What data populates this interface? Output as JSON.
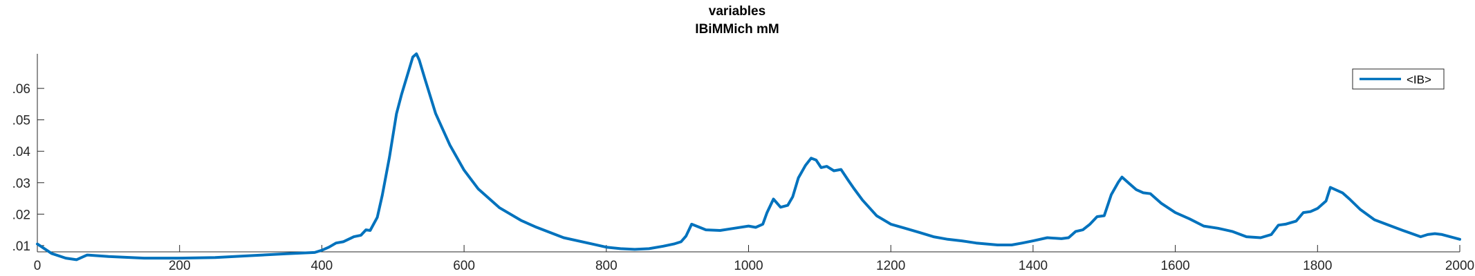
{
  "chart_data": {
    "type": "line",
    "title": "variables",
    "subtitle": "IBiMMich mM",
    "xlabel": "",
    "ylabel": "",
    "xlim": [
      0,
      2000
    ],
    "ylim": [
      0.008,
      0.071
    ],
    "x_ticks": [
      0,
      200,
      400,
      600,
      800,
      1000,
      1200,
      1400,
      1600,
      1800,
      2000
    ],
    "x_tick_labels": [
      "0",
      "200",
      "400",
      "600",
      "800",
      "1000",
      "1200",
      "1400",
      "1600",
      "1800",
      "2000"
    ],
    "y_ticks": [
      0.01,
      0.02,
      0.03,
      0.04,
      0.05,
      0.06
    ],
    "y_tick_labels": [
      ".01",
      ".02",
      ".03",
      ".04",
      ".05",
      ".06"
    ],
    "grid": false,
    "legend": {
      "position": "top-right",
      "entries": [
        "<IB>"
      ]
    },
    "series": [
      {
        "name": "<IB>",
        "color": "#0072BD",
        "x": [
          0,
          20,
          40,
          55,
          65,
          70,
          100,
          150,
          200,
          250,
          300,
          350,
          390,
          400,
          410,
          420,
          430,
          445,
          455,
          462,
          468,
          478,
          485,
          495,
          505,
          512,
          520,
          528,
          533,
          537,
          545,
          560,
          580,
          600,
          620,
          650,
          680,
          700,
          740,
          780,
          800,
          820,
          840,
          860,
          880,
          895,
          905,
          912,
          920,
          940,
          960,
          980,
          1000,
          1010,
          1020,
          1026,
          1035,
          1045,
          1055,
          1062,
          1070,
          1080,
          1088,
          1095,
          1102,
          1110,
          1120,
          1130,
          1140,
          1148,
          1160,
          1180,
          1200,
          1220,
          1240,
          1260,
          1280,
          1300,
          1320,
          1350,
          1370,
          1385,
          1400,
          1420,
          1440,
          1450,
          1460,
          1470,
          1480,
          1490,
          1500,
          1510,
          1520,
          1525,
          1535,
          1545,
          1555,
          1565,
          1580,
          1600,
          1620,
          1640,
          1660,
          1680,
          1700,
          1720,
          1735,
          1745,
          1755,
          1770,
          1780,
          1790,
          1800,
          1812,
          1818,
          1825,
          1835,
          1845,
          1860,
          1880,
          1900,
          1920,
          1945,
          1955,
          1965,
          1975,
          2000
        ],
        "values": [
          0.0105,
          0.0075,
          0.006,
          0.0055,
          0.0065,
          0.007,
          0.0065,
          0.006,
          0.006,
          0.0062,
          0.0068,
          0.0074,
          0.0078,
          0.0085,
          0.0095,
          0.0108,
          0.0112,
          0.0128,
          0.0133,
          0.015,
          0.0148,
          0.019,
          0.026,
          0.038,
          0.052,
          0.058,
          0.064,
          0.07,
          0.071,
          0.069,
          0.063,
          0.052,
          0.042,
          0.034,
          0.028,
          0.022,
          0.018,
          0.016,
          0.0125,
          0.0105,
          0.0095,
          0.009,
          0.0088,
          0.009,
          0.0098,
          0.0105,
          0.0112,
          0.013,
          0.0168,
          0.015,
          0.0148,
          0.0155,
          0.0162,
          0.0158,
          0.0168,
          0.0205,
          0.0248,
          0.0222,
          0.0228,
          0.0255,
          0.0315,
          0.0355,
          0.0378,
          0.0372,
          0.0348,
          0.0352,
          0.0338,
          0.0342,
          0.0308,
          0.0282,
          0.0245,
          0.0195,
          0.0168,
          0.0155,
          0.0142,
          0.0128,
          0.012,
          0.0115,
          0.0108,
          0.0102,
          0.0102,
          0.0108,
          0.0115,
          0.0125,
          0.0122,
          0.0125,
          0.0145,
          0.015,
          0.0168,
          0.0192,
          0.0195,
          0.0262,
          0.0302,
          0.0318,
          0.0298,
          0.0278,
          0.0268,
          0.0265,
          0.0235,
          0.0205,
          0.0185,
          0.0162,
          0.0155,
          0.0145,
          0.0128,
          0.0125,
          0.0135,
          0.0165,
          0.0168,
          0.0178,
          0.0205,
          0.0208,
          0.0218,
          0.0242,
          0.0285,
          0.0278,
          0.0268,
          0.0248,
          0.0215,
          0.0182,
          0.0165,
          0.0148,
          0.0128,
          0.0135,
          0.0138,
          0.0135,
          0.012
        ]
      }
    ]
  }
}
